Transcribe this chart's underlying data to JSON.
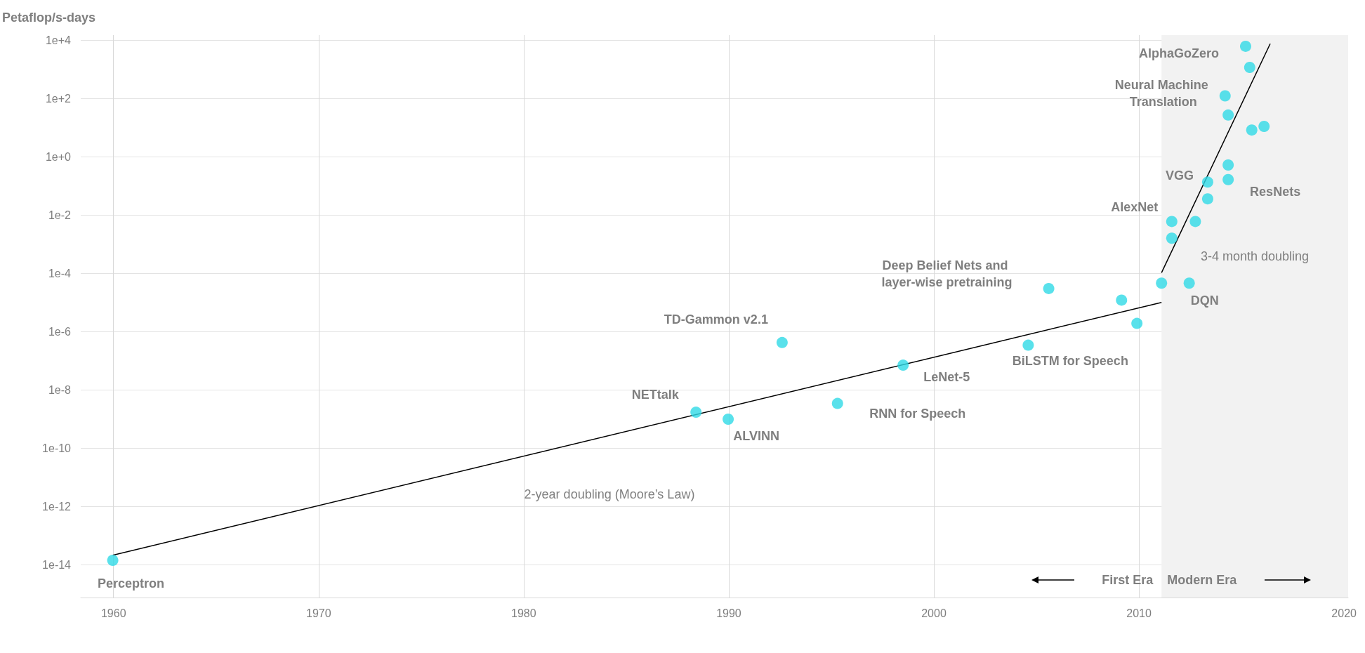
{
  "chart_data": {
    "type": "scatter",
    "ylabel": "Petaflop/s-days",
    "log": "y",
    "grid": true,
    "marker": "circle",
    "xlim": [
      1958.4,
      2020.2
    ],
    "xticks": [
      1960,
      1970,
      1980,
      1990,
      2000,
      2010,
      2020
    ],
    "ylim": [
      7.4e-16,
      15000
    ],
    "yticks": [
      {
        "value": 1e-14,
        "label": "1e-14"
      },
      {
        "value": 1e-12,
        "label": "1e-12"
      },
      {
        "value": 1e-10,
        "label": "1e-10"
      },
      {
        "value": 1e-08,
        "label": "1e-8"
      },
      {
        "value": 1e-06,
        "label": "1e-6"
      },
      {
        "value": 0.0001,
        "label": "1e-4"
      },
      {
        "value": 0.01,
        "label": "1e-2"
      },
      {
        "value": 1,
        "label": "1e+0"
      },
      {
        "value": 100,
        "label": "1e+2"
      },
      {
        "value": 10000,
        "label": "1e+4"
      }
    ],
    "bands": [
      {
        "axis": "x",
        "from": 2011.1,
        "to": 2020.2,
        "color": "#f2f2f2"
      }
    ],
    "series": [
      {
        "color": "#2fd9e6",
        "x": [
          1959.96,
          1988.4,
          1989.97,
          1992.6,
          1995.3,
          1998.5,
          2004.6,
          2005.6,
          2009.15,
          2009.9,
          2011.1,
          2012.45,
          2011.6,
          2011.6,
          2012.75,
          2013.35,
          2013.35,
          2014.35,
          2014.35,
          2014.35,
          2014.2,
          2015.5,
          2016.1,
          2015.4,
          2015.2
        ],
        "values": [
          1.4e-14,
          1.7e-09,
          9.8e-10,
          4.2e-07,
          3.4e-09,
          7e-08,
          3.4e-07,
          3e-05,
          1.2e-05,
          1.9e-06,
          4.6e-05,
          4.6e-05,
          0.0016,
          0.006,
          0.006,
          0.036,
          0.135,
          0.165,
          0.52,
          27,
          123,
          8.3,
          11,
          1170,
          6200
        ]
      },
      {
        "type": "line",
        "color": "#000000",
        "marker": "none",
        "line_style": "solid",
        "x": [
          1959.96,
          2011.1
        ],
        "values": [
          2.1e-14,
          1e-05
        ]
      },
      {
        "type": "line",
        "color": "#000000",
        "marker": "none",
        "line_style": "solid",
        "x": [
          2011.1,
          2016.4
        ],
        "values": [
          0.000105,
          7600
        ]
      }
    ],
    "annotations": [
      {
        "text": "Perceptron",
        "x": 1959.96,
        "y": 1.4e-14
      },
      {
        "text": "NETtalk",
        "x": 1988.4,
        "y": 1.7e-09
      },
      {
        "text": "ALVINN",
        "x": 1989.97,
        "y": 9.8e-10
      },
      {
        "text": "TD-Gammon v2.1",
        "x": 1992.6,
        "y": 4.2e-07
      },
      {
        "text": "RNN for Speech",
        "x": 1995.3,
        "y": 3.4e-09
      },
      {
        "text": "LeNet-5",
        "x": 1998.5,
        "y": 7e-08
      },
      {
        "text": "BiLSTM for Speech",
        "x": 2004.6,
        "y": 3.4e-07
      },
      {
        "text": "Deep Belief Nets and layer-wise pretraining",
        "x": 2005.6,
        "y": 3e-05
      },
      {
        "text": "DQN",
        "x": 2012.45,
        "y": 4.6e-05
      },
      {
        "text": "AlexNet",
        "x": 2011.6,
        "y": 0.006
      },
      {
        "text": "VGG",
        "x": 2013.35,
        "y": 0.135
      },
      {
        "text": "ResNets",
        "x": 2014.35,
        "y": 0.165
      },
      {
        "text": "Neural Machine Translation",
        "x": 2014.2,
        "y": 123
      },
      {
        "text": "AlphaGoZero",
        "x": 2015.2,
        "y": 6200
      },
      "2-year doubling (Moore’s Law)",
      "3-4 month doubling",
      "First Era",
      "Modern Era"
    ]
  }
}
